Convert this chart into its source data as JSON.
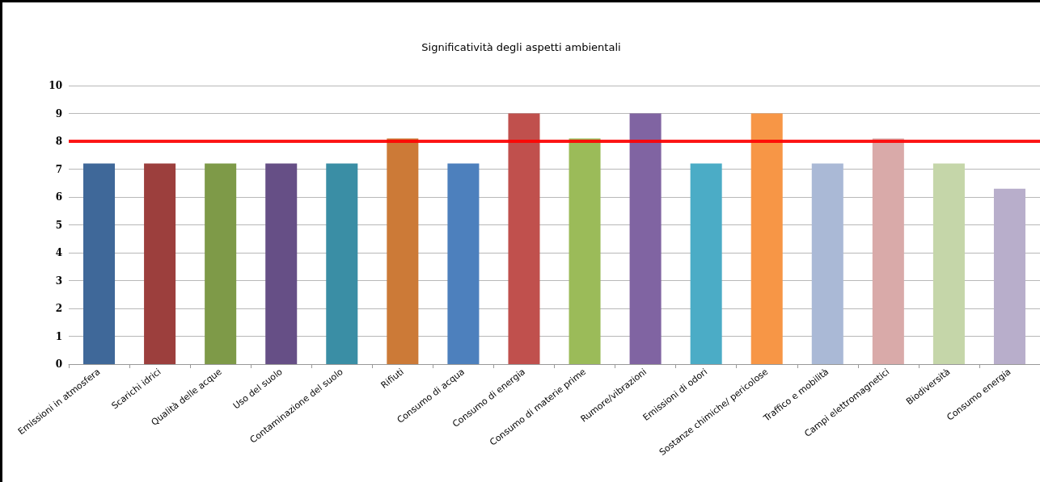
{
  "chart_data": {
    "type": "bar",
    "title": "Significatività degli aspetti ambientali",
    "categories": [
      "Emissioni in atmosfera",
      "Scarichi idrici",
      "Qualità delle acque",
      "Uso del suolo",
      "Contaminazione del suolo",
      "Rifiuti",
      "Consumo di acqua",
      "Consumo di energia",
      "Consumo di materie prime",
      "Rumore/vibrazioni",
      "Emissioni di odori",
      "Sostanze chimiche/ pericolose",
      "Traffico e mobilità",
      "Campi elettromagnetici",
      "Biodiversità",
      "Consumo energia"
    ],
    "values": [
      7.2,
      7.2,
      7.2,
      7.2,
      7.2,
      8.1,
      7.2,
      9,
      8.1,
      9,
      7.2,
      9,
      7.2,
      8.1,
      7.2,
      6.3
    ],
    "colors": [
      "#3f6899",
      "#9c3f3d",
      "#7e9a48",
      "#664f86",
      "#3a8ea5",
      "#cc7a37",
      "#4d80bd",
      "#c0504d",
      "#9bbb59",
      "#8064a2",
      "#4bacc6",
      "#f79646",
      "#aab9d6",
      "#d9aaa9",
      "#c5d6a9",
      "#b8aecb"
    ],
    "ylim": [
      0,
      10
    ],
    "yticks": [
      0,
      1,
      2,
      3,
      4,
      5,
      6,
      7,
      8,
      9,
      10
    ],
    "grid": "y",
    "ref_lines": [
      {
        "axis": "y",
        "value": 8,
        "color": "#ff0000"
      }
    ]
  }
}
